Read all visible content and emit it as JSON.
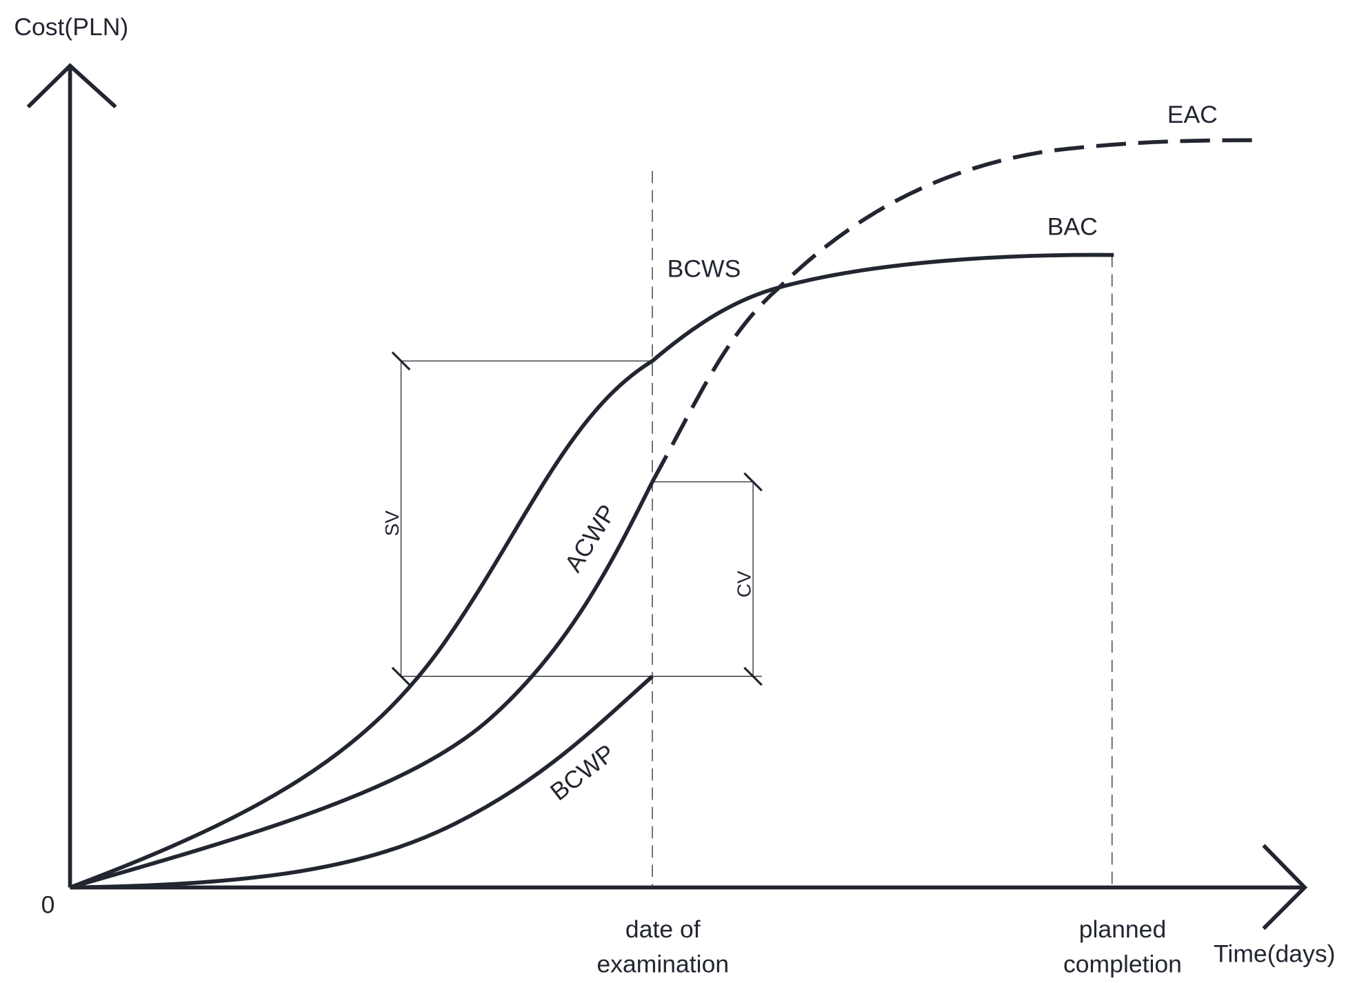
{
  "axes": {
    "y_label": "Cost(PLN)",
    "x_label": "Time(days)",
    "origin": "0"
  },
  "markers": {
    "examination": [
      "date of",
      "examination"
    ],
    "completion": [
      "planned",
      "completion"
    ]
  },
  "curves": {
    "eac": "EAC",
    "bac": "BAC",
    "bcws": "BCWS",
    "acwp": "ACWP",
    "bcwp": "BCWP"
  },
  "variances": {
    "sv": "SV",
    "cv": "CV"
  }
}
